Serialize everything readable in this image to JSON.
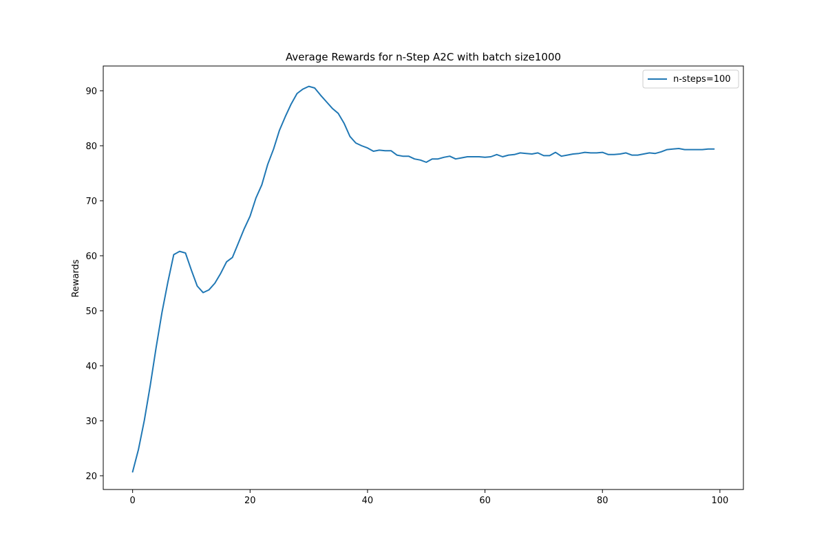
{
  "chart_data": {
    "type": "line",
    "title": "Average Rewards for n-Step A2C with batch size1000",
    "xlabel": "",
    "ylabel": "Rewards",
    "xlim": [
      -5,
      104
    ],
    "ylim": [
      17.5,
      94.5
    ],
    "xticks": [
      0,
      20,
      40,
      60,
      80,
      100
    ],
    "yticks": [
      20,
      30,
      40,
      50,
      60,
      70,
      80,
      90
    ],
    "grid": false,
    "legend_position": "top-right",
    "series_color": "#1f77b4",
    "series": [
      {
        "name": "n-steps=100",
        "x": [
          0,
          1,
          2,
          3,
          4,
          5,
          6,
          7,
          8,
          9,
          10,
          11,
          12,
          13,
          14,
          15,
          16,
          17,
          18,
          19,
          20,
          21,
          22,
          23,
          24,
          25,
          26,
          27,
          28,
          29,
          30,
          31,
          32,
          33,
          34,
          35,
          36,
          37,
          38,
          39,
          40,
          41,
          42,
          43,
          44,
          45,
          46,
          47,
          48,
          49,
          50,
          51,
          52,
          53,
          54,
          55,
          56,
          57,
          58,
          59,
          60,
          61,
          62,
          63,
          64,
          65,
          66,
          67,
          68,
          69,
          70,
          71,
          72,
          73,
          74,
          75,
          76,
          77,
          78,
          79,
          80,
          81,
          82,
          83,
          84,
          85,
          86,
          87,
          88,
          89,
          90,
          91,
          92,
          93,
          94,
          95,
          96,
          97,
          98,
          99
        ],
        "y": [
          20.7,
          24.8,
          30.1,
          36.4,
          43.3,
          49.7,
          55.2,
          60.2,
          60.8,
          60.5,
          57.4,
          54.5,
          53.3,
          53.8,
          55.0,
          56.8,
          58.9,
          59.7,
          62.3,
          64.9,
          67.2,
          70.5,
          72.9,
          76.6,
          79.4,
          82.8,
          85.3,
          87.6,
          89.5,
          90.3,
          90.8,
          90.5,
          89.2,
          88.0,
          86.8,
          85.9,
          84.1,
          81.7,
          80.5,
          80.0,
          79.6,
          79.0,
          79.2,
          79.1,
          79.1,
          78.3,
          78.1,
          78.1,
          77.6,
          77.4,
          77.0,
          77.6,
          77.6,
          77.9,
          78.1,
          77.6,
          77.8,
          78.0,
          78.0,
          78.0,
          77.9,
          78.0,
          78.4,
          78.0,
          78.3,
          78.4,
          78.7,
          78.6,
          78.5,
          78.7,
          78.2,
          78.2,
          78.8,
          78.1,
          78.3,
          78.5,
          78.6,
          78.8,
          78.7,
          78.7,
          78.8,
          78.4,
          78.4,
          78.5,
          78.7,
          78.3,
          78.3,
          78.5,
          78.7,
          78.6,
          78.9,
          79.3,
          79.4,
          79.5,
          79.3,
          79.3,
          79.3,
          79.3,
          79.4,
          79.4
        ]
      }
    ]
  }
}
